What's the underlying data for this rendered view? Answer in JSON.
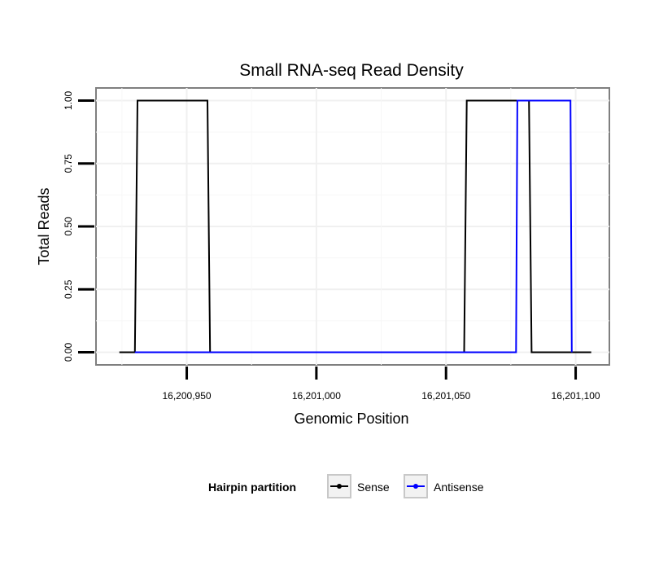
{
  "chart_data": {
    "type": "line",
    "title": "Small RNA-seq Read Density",
    "xlabel": "Genomic Position",
    "ylabel": "Total Reads",
    "xlim": [
      16200915,
      16201113
    ],
    "ylim": [
      -0.05,
      1.05
    ],
    "x_ticks": [
      16200950,
      16201000,
      16201050,
      16201100
    ],
    "x_tick_labels": [
      "16,200,950",
      "16,201,000",
      "16,201,050",
      "16,201,100"
    ],
    "y_ticks": [
      0,
      0.25,
      0.5,
      0.75,
      1
    ],
    "y_tick_labels": [
      "0.00",
      "0.25",
      "0.50",
      "0.75",
      "1.00"
    ],
    "grid": true,
    "legend": {
      "title": "Hairpin partition",
      "position": "bottom",
      "entries": [
        "Sense",
        "Antisense"
      ]
    },
    "series": [
      {
        "name": "Sense",
        "color": "#000000",
        "x": [
          16200924,
          16200930,
          16200931,
          16200958,
          16200959,
          16201057,
          16201058,
          16201082,
          16201083,
          16201106
        ],
        "y": [
          0,
          0,
          1,
          1,
          0,
          0,
          1,
          1,
          0,
          0
        ]
      },
      {
        "name": "Antisense",
        "color": "#0000ff",
        "x": [
          16200930,
          16201077,
          16201077.5,
          16201098,
          16201098.5
        ],
        "y": [
          0,
          0,
          1,
          1,
          0
        ]
      }
    ]
  }
}
